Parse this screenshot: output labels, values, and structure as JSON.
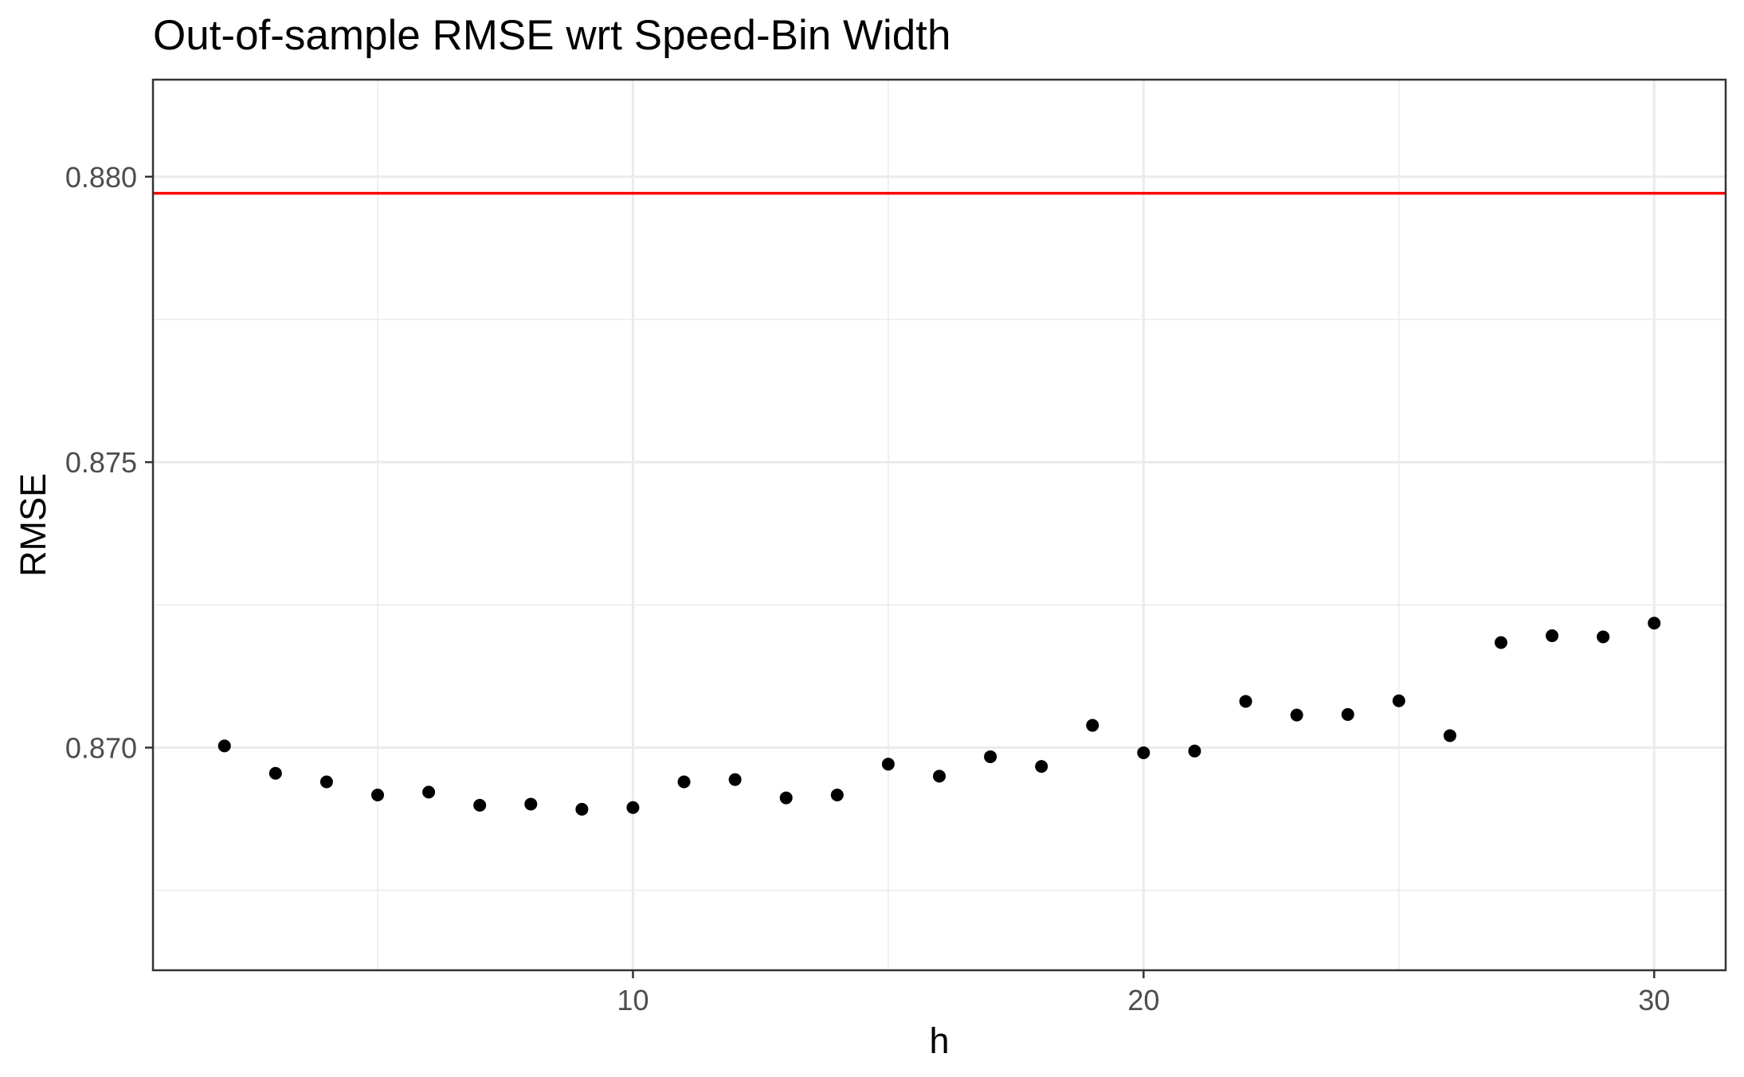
{
  "chart_data": {
    "type": "scatter",
    "title": "Out-of-sample RMSE wrt Speed-Bin Width",
    "xlabel": "h",
    "ylabel": "RMSE",
    "xlim": [
      0.6,
      31.4
    ],
    "ylim": [
      0.8661,
      0.8817
    ],
    "x_ticks": [
      10,
      20,
      30
    ],
    "x_tick_labels": [
      "10",
      "20",
      "30"
    ],
    "y_ticks": [
      0.87,
      0.875,
      0.88
    ],
    "y_tick_labels": [
      "0.870",
      "0.875",
      "0.880"
    ],
    "grid": true,
    "series": [
      {
        "color": "#000000",
        "x": [
          2,
          3,
          4,
          5,
          6,
          7,
          8,
          9,
          10,
          11,
          12,
          13,
          14,
          15,
          16,
          17,
          18,
          19,
          20,
          21,
          22,
          23,
          24,
          25,
          26,
          27,
          28,
          29,
          30
        ],
        "y": [
          0.87003,
          0.86955,
          0.8694,
          0.86917,
          0.86922,
          0.86899,
          0.86901,
          0.86892,
          0.86895,
          0.8694,
          0.86944,
          0.86912,
          0.86917,
          0.86971,
          0.8695,
          0.86984,
          0.86967,
          0.87039,
          0.86991,
          0.86994,
          0.87081,
          0.87057,
          0.87058,
          0.87082,
          0.87021,
          0.87184,
          0.87196,
          0.87194,
          0.87218
        ]
      }
    ],
    "reference_line": {
      "orientation": "horizontal",
      "y": 0.87971,
      "color": "#ff0000"
    }
  }
}
